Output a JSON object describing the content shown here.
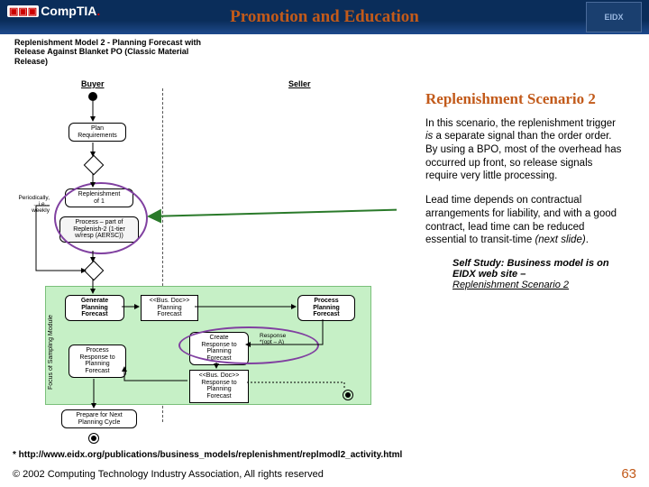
{
  "header": {
    "title": "Promotion and Education",
    "logo_left": "CompTIA",
    "logo_right": "EIDX"
  },
  "diagram": {
    "title": "Replenishment Model 2 - Planning Forecast with Release Against Blanket PO (Classic Material Release)",
    "buyer_label": "Buyer",
    "seller_label": "Seller",
    "nodes": {
      "plan_req": "Plan\nRequirements",
      "replen_n": "Replenishment\nof 1",
      "process_part": "Process – part of\nReplenish-2 (1-tier\nw/resp (AERSC))",
      "periodic": "Periodically,\n...i.e...\nweekly",
      "gen_forecast": "Generate\nPlanning\nForecast",
      "bus_doc1": "<<Bus. Doc>>\nPlanning\nForecast",
      "proc_forecast": "Process\nPlanning\nForecast",
      "create_resp": "Create\nResponse to\nPlanning\nForecast",
      "bus_doc2": "<<Bus. Doc>>\nResponse to\nPlanning\nForecast",
      "proc_resp": "Process\nResponse to\nPlanning\nForecast",
      "resp_opt": "Response\n*(opt – A)",
      "prep_next": "Prepare for Next\nPlanning Cycle",
      "vert_label": "Focus of Sampling Module"
    }
  },
  "text": {
    "heading": "Replenishment Scenario 2",
    "para1_a": "In this scenario, the replenishment trigger ",
    "para1_is": "is",
    "para1_b": " a separate signal than the order order.  By using a BPO, most of the overhead has occurred up front, so release signals require very little processing.",
    "para2_a": "Lead time depends on contractual arrangements for liability, and with a good contract, lead time can be reduced essential to transit-time ",
    "para2_i": "(next slide)",
    "para2_b": ".",
    "self_a": "Self Study:  Business model is on EIDX web site – ",
    "self_link": "Replenishment Scenario 2"
  },
  "footer": {
    "footnote": "* http://www.eidx.org/publications/business_models/replenishment/replmodl2_activity.html",
    "copyright": "© 2002 Computing Technology Industry Association, All rights reserved",
    "page": "63"
  },
  "colors": {
    "accent": "#c25a1a",
    "header_bg": "#0a2d5a",
    "green": "#c6f0c6",
    "purple": "#8040a0"
  }
}
